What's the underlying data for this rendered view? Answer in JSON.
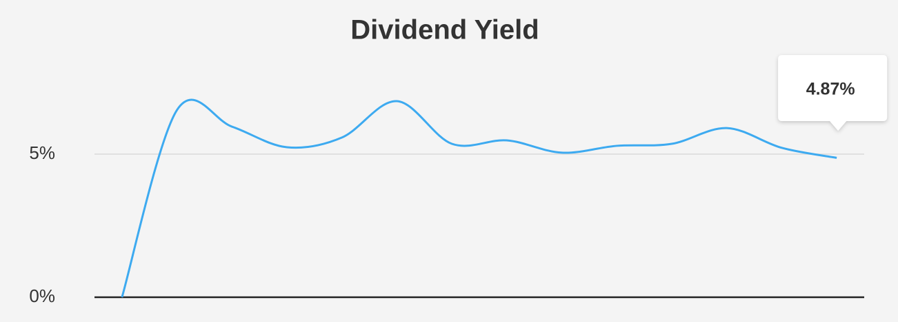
{
  "chart_data": {
    "type": "line",
    "title": "Dividend Yield",
    "categories": [
      null,
      null,
      null,
      null,
      null,
      null,
      null,
      null,
      null,
      null,
      null,
      null,
      null,
      null
    ],
    "series": [
      {
        "color": "#3daaf0",
        "values": [
          0,
          6.54,
          5.96,
          5.24,
          5.58,
          6.85,
          5.36,
          5.48,
          5.05,
          5.29,
          5.36,
          5.91,
          5.22,
          4.87
        ]
      }
    ],
    "tooltip": "4.87%",
    "ylim": [
      0,
      8
    ],
    "yticks": [
      {
        "value": 0,
        "label": "0%"
      },
      {
        "value": 5,
        "label": "5%"
      }
    ],
    "grid": true
  }
}
